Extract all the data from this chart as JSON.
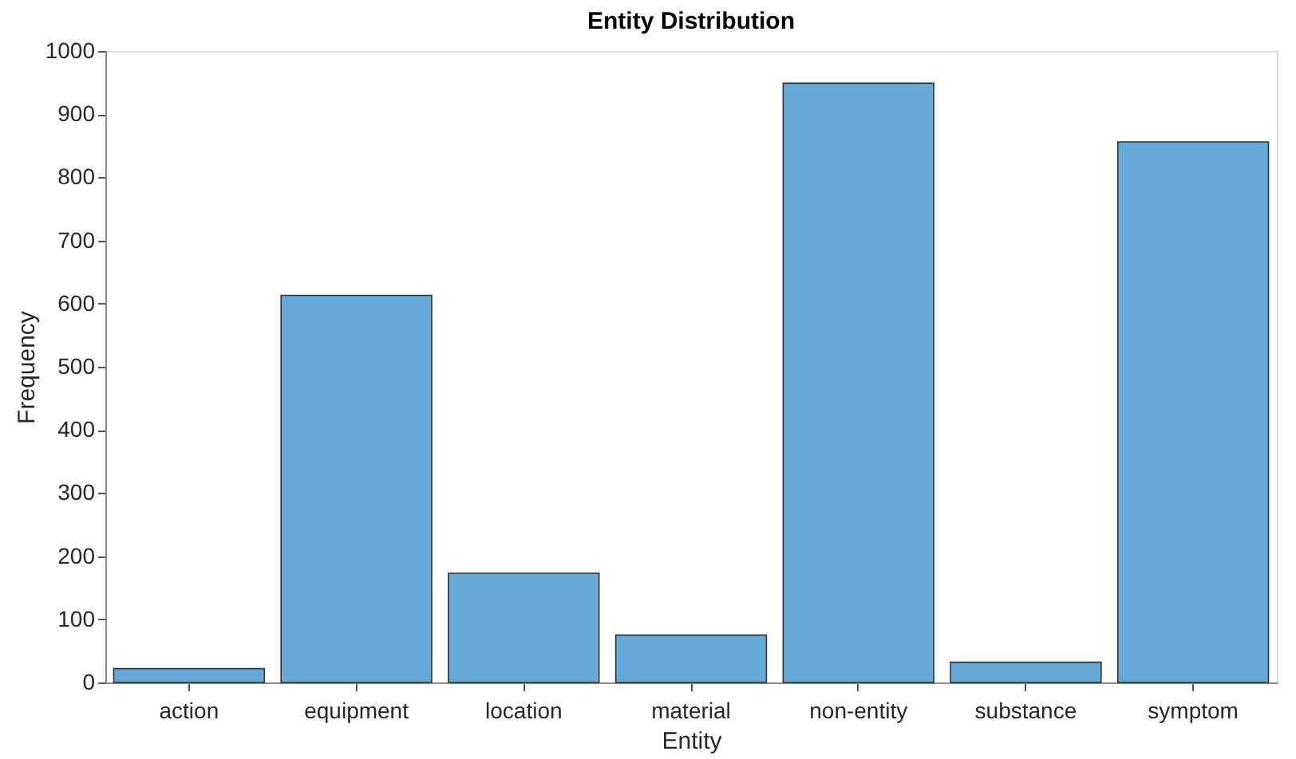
{
  "chart_data": {
    "type": "bar",
    "title": "Entity Distribution",
    "xlabel": "Entity",
    "ylabel": "Frequency",
    "categories": [
      "action",
      "equipment",
      "location",
      "material",
      "non-entity",
      "substance",
      "symptom"
    ],
    "values": [
      22,
      613,
      173,
      75,
      949,
      32,
      856
    ],
    "color": "#66aad7",
    "ylim": [
      0,
      1000
    ],
    "yticks": [
      0,
      100,
      200,
      300,
      400,
      500,
      600,
      700,
      800,
      900,
      1000
    ],
    "grid": false
  }
}
